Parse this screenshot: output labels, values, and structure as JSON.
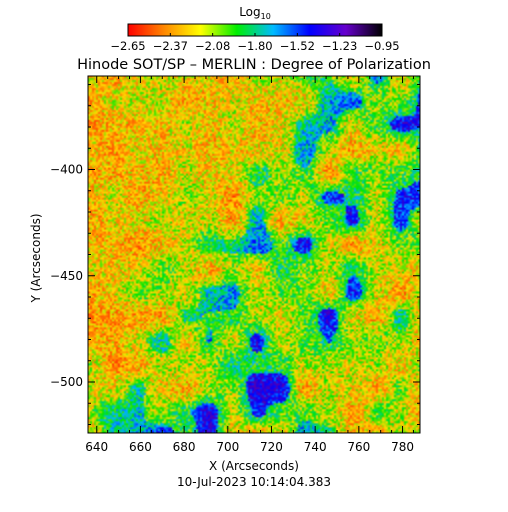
{
  "chart_data": {
    "type": "heatmap",
    "title": "Hinode SOT/SP – MERLIN : Degree of Polarization",
    "xlabel": "X (Arcseconds)",
    "ylabel": "Y (Arcseconds)",
    "xlim": [
      636,
      788
    ],
    "ylim": [
      -524,
      -356
    ],
    "x_ticks": [
      640,
      660,
      680,
      700,
      720,
      740,
      760,
      780
    ],
    "y_ticks": [
      -400,
      -450,
      -500
    ],
    "colorbar": {
      "label": "Log",
      "label_sub": "10",
      "range": [
        -2.65,
        -0.95
      ],
      "ticks": [
        "−2.65",
        "−2.37",
        "−2.08",
        "−1.80",
        "−1.52",
        "−1.23",
        "−0.95"
      ],
      "colormap": [
        "#ff0000",
        "#ff8800",
        "#ffff00",
        "#00ee00",
        "#00bbff",
        "#0000ff",
        "#6600cc",
        "#000000"
      ]
    },
    "timestamp": "10-Jul-2023 10:14:04.383"
  }
}
